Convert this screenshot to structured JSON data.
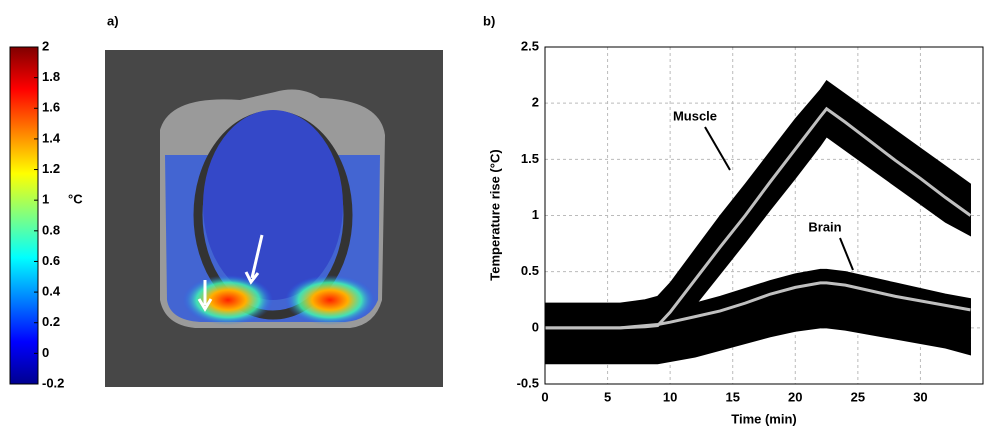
{
  "chart_data": [
    {
      "type": "colorbar",
      "panel_label": "a)",
      "unit_label": "°C",
      "ylim": [
        -0.2,
        2
      ],
      "yticks": [
        -0.2,
        0,
        0.2,
        0.4,
        0.6,
        0.8,
        1,
        1.2,
        1.4,
        1.6,
        1.8,
        2
      ],
      "colors": [
        "#00008f",
        "#0000ff",
        "#0080ff",
        "#00ffff",
        "#80ff80",
        "#ffff00",
        "#ff8000",
        "#ff0000",
        "#800000"
      ]
    },
    {
      "type": "line",
      "panel_label": "b)",
      "x_label": "Time (min)",
      "y_label": "Temperature rise (°C)",
      "xlim": [
        0,
        35
      ],
      "xticks": [
        0,
        5,
        10,
        15,
        20,
        25,
        30
      ],
      "ylim": [
        -0.5,
        2.5
      ],
      "yticks": [
        -0.5,
        0,
        0.5,
        1,
        1.5,
        2,
        2.5
      ],
      "grid": true,
      "x": [
        0,
        2,
        4,
        6,
        8,
        9,
        10,
        12,
        14,
        16,
        18,
        20,
        22,
        22.5,
        24,
        26,
        28,
        30,
        32,
        34
      ],
      "series": [
        {
          "name": "Muscle",
          "color": "#c0c0c0",
          "band_color": "#000000",
          "values": [
            0,
            0,
            0,
            0,
            0.01,
            0.02,
            0.14,
            0.43,
            0.72,
            1.0,
            1.3,
            1.59,
            1.88,
            1.95,
            1.83,
            1.66,
            1.49,
            1.33,
            1.16,
            1.0
          ],
          "upper": [
            0.22,
            0.22,
            0.22,
            0.22,
            0.25,
            0.28,
            0.4,
            0.7,
            1.0,
            1.28,
            1.57,
            1.86,
            2.12,
            2.2,
            2.08,
            1.92,
            1.76,
            1.6,
            1.44,
            1.28
          ],
          "lower": [
            -0.12,
            -0.12,
            -0.12,
            -0.12,
            -0.12,
            -0.12,
            -0.1,
            0.2,
            0.48,
            0.76,
            1.05,
            1.33,
            1.62,
            1.7,
            1.58,
            1.42,
            1.26,
            1.1,
            0.94,
            0.82
          ]
        },
        {
          "name": "Brain",
          "color": "#c0c0c0",
          "band_color": "#000000",
          "values": [
            0,
            0,
            0,
            0,
            0.02,
            0.03,
            0.05,
            0.1,
            0.15,
            0.22,
            0.3,
            0.36,
            0.4,
            0.4,
            0.38,
            0.33,
            0.28,
            0.24,
            0.2,
            0.16
          ],
          "upper": [
            0.12,
            0.12,
            0.12,
            0.12,
            0.14,
            0.15,
            0.17,
            0.22,
            0.28,
            0.35,
            0.42,
            0.48,
            0.52,
            0.52,
            0.5,
            0.45,
            0.4,
            0.35,
            0.3,
            0.26
          ],
          "lower": [
            -0.32,
            -0.32,
            -0.32,
            -0.32,
            -0.32,
            -0.32,
            -0.3,
            -0.26,
            -0.2,
            -0.14,
            -0.08,
            -0.03,
            0,
            0,
            -0.02,
            -0.06,
            -0.1,
            -0.14,
            -0.18,
            -0.24
          ]
        }
      ]
    }
  ]
}
